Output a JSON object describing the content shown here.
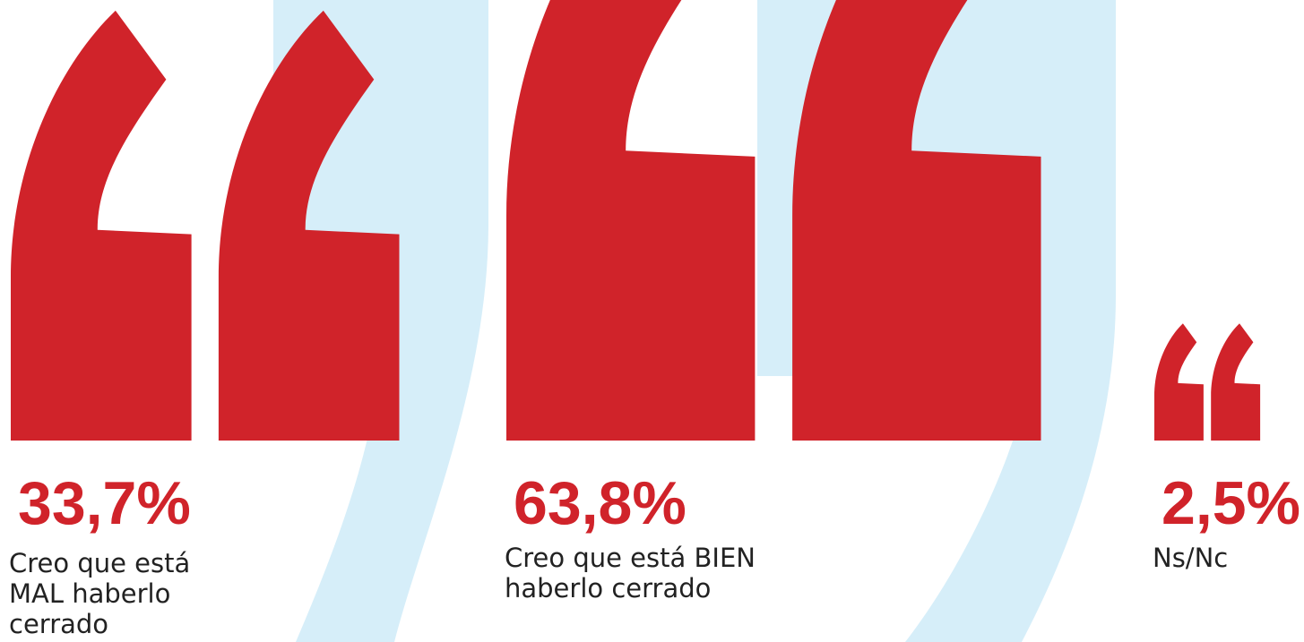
{
  "chart_data": {
    "type": "pictogram",
    "categories": [
      "Creo que está MAL haberlo cerrado",
      "Creo que está BIEN haberlo cerrado",
      "Ns/Nc"
    ],
    "values": [
      33.7,
      63.8,
      2.5
    ],
    "value_labels": [
      "33,7%",
      "63,8%",
      "2,5%"
    ],
    "color": "#d0232a"
  }
}
